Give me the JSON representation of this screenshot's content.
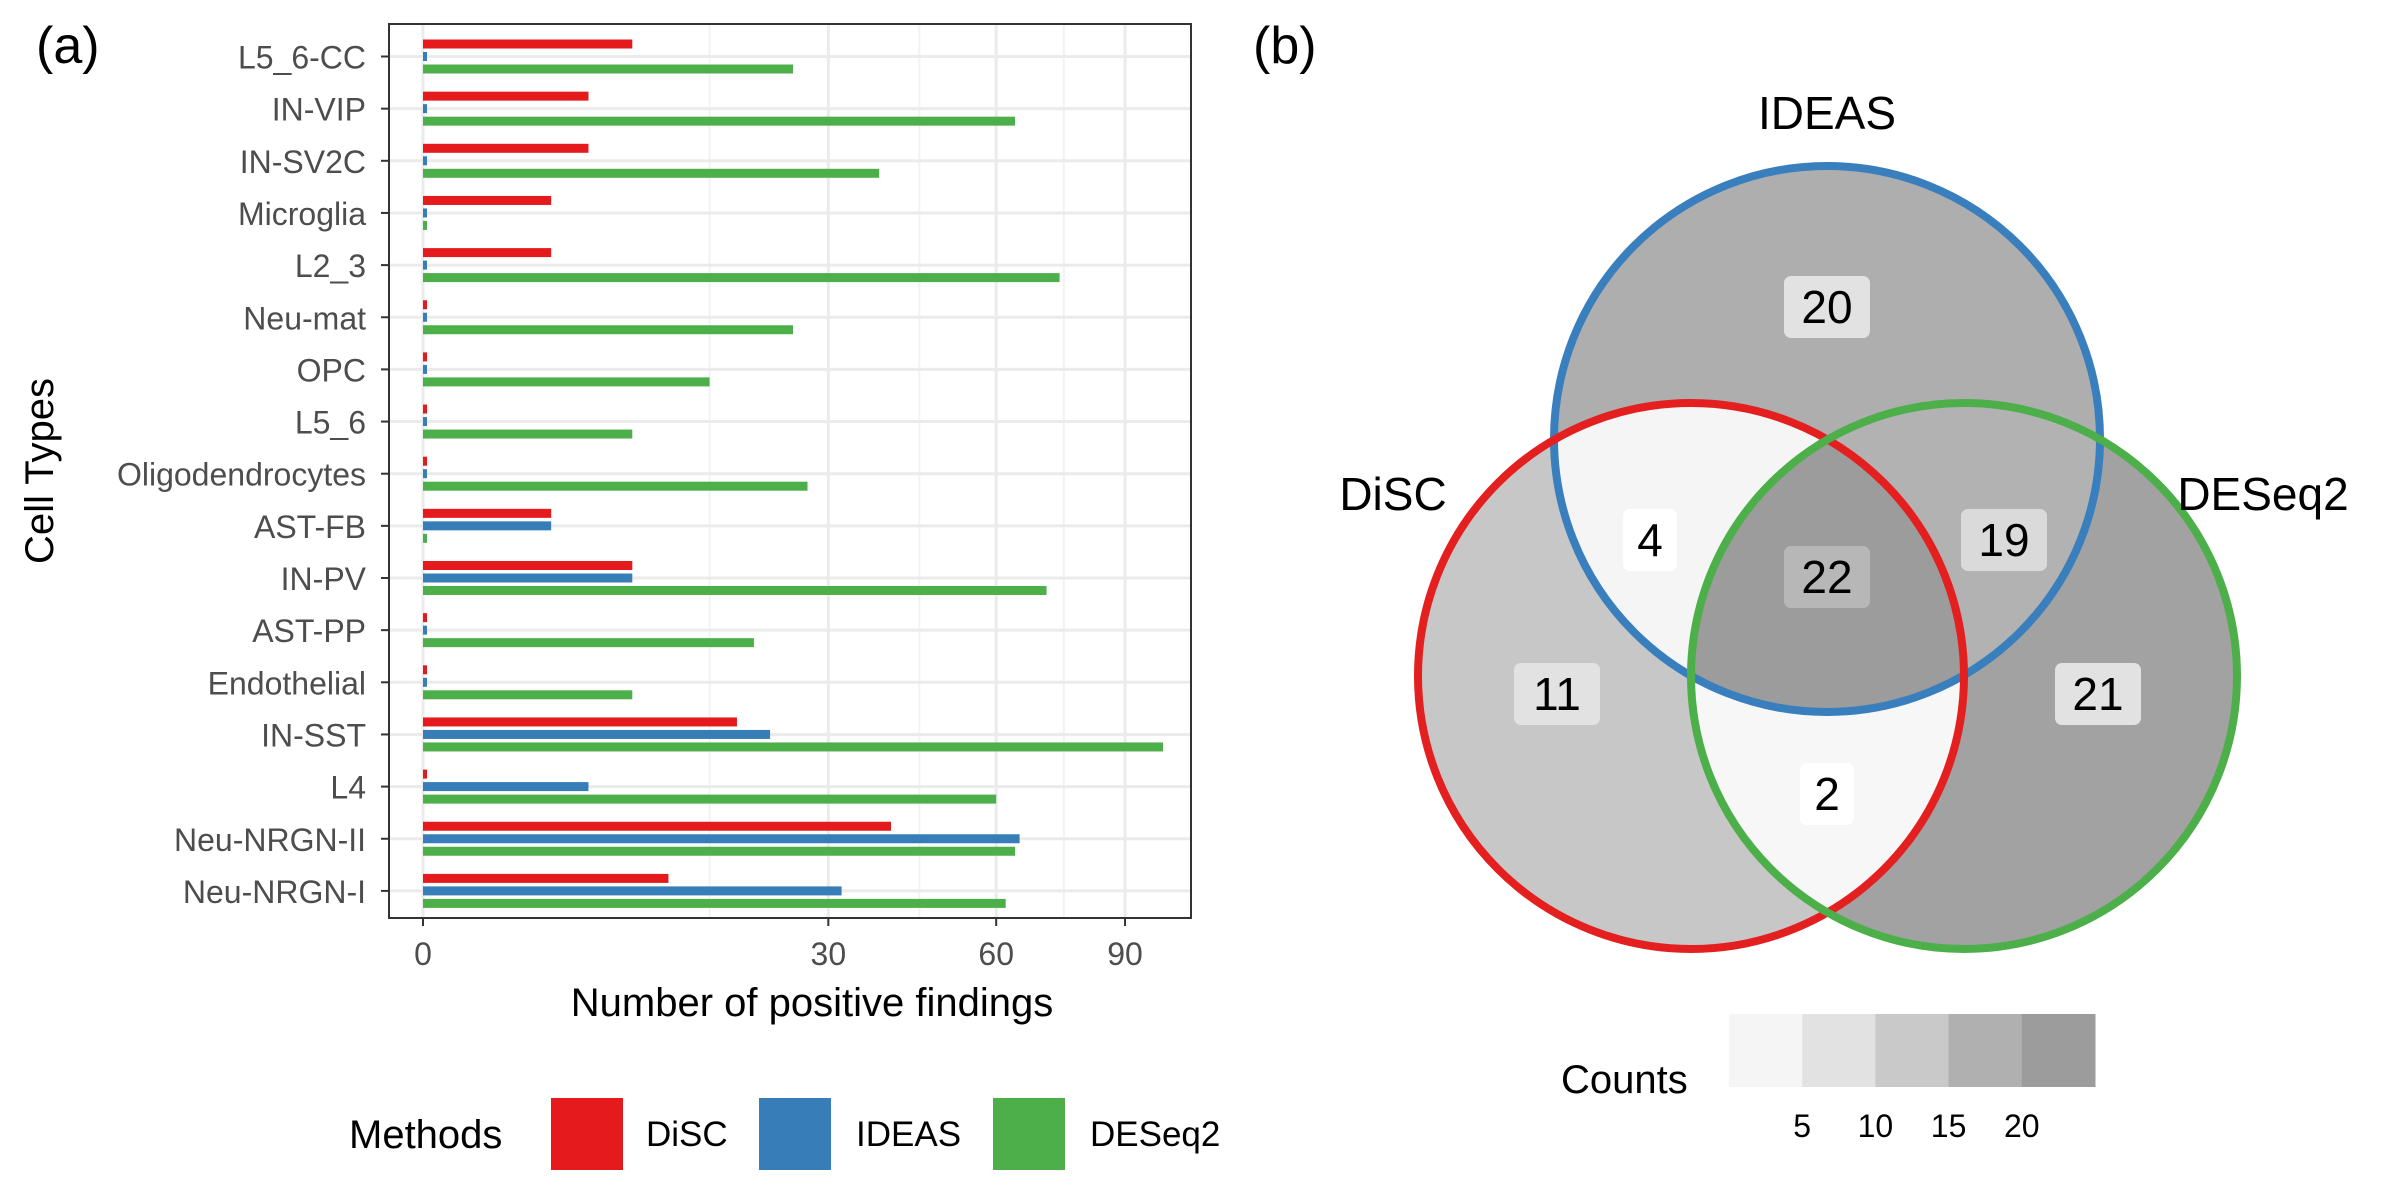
{
  "panels": {
    "a_label": "(a)",
    "b_label": "(b)"
  },
  "chart_data": [
    {
      "type": "bar",
      "orientation": "horizontal",
      "xlabel": "Number of positive findings",
      "ylabel": "Cell Types",
      "x_scale": "sqrt",
      "x_ticks": [
        0,
        30,
        60,
        90
      ],
      "xlim": [
        0,
        100
      ],
      "grid": true,
      "legend": {
        "title": "Methods",
        "position": "bottom",
        "entries": [
          {
            "name": "DiSC",
            "color": "#E41A1C"
          },
          {
            "name": "IDEAS",
            "color": "#377EB8"
          },
          {
            "name": "DESeq2",
            "color": "#4DAF4A"
          }
        ]
      },
      "categories": [
        "L5_6-CC",
        "IN-VIP",
        "IN-SV2C",
        "Microglia",
        "L2_3",
        "Neu-mat",
        "OPC",
        "L5_6",
        "Oligodendrocytes",
        "AST-FB",
        "IN-PV",
        "AST-PP",
        "Endothelial",
        "IN-SST",
        "L4",
        "Neu-NRGN-II",
        "Neu-NRGN-I"
      ],
      "series": [
        {
          "name": "DiSC",
          "color": "#E41A1C",
          "values": [
            8,
            5,
            5,
            3,
            3,
            0,
            0,
            0,
            0,
            3,
            8,
            0,
            0,
            18,
            0,
            40,
            11
          ]
        },
        {
          "name": "IDEAS",
          "color": "#377EB8",
          "values": [
            0,
            0,
            0,
            0,
            0,
            0,
            0,
            0,
            0,
            3,
            8,
            0,
            0,
            22,
            5,
            65,
            32
          ]
        },
        {
          "name": "DESeq2",
          "color": "#4DAF4A",
          "values": [
            25,
            64,
            38,
            0,
            74,
            25,
            15,
            8,
            27,
            0,
            71,
            20,
            8,
            100,
            60,
            64,
            62
          ]
        }
      ]
    },
    {
      "type": "venn",
      "sets": [
        {
          "name": "IDEAS",
          "color": "#3A7FBD"
        },
        {
          "name": "DiSC",
          "color": "#E3201F"
        },
        {
          "name": "DESeq2",
          "color": "#4DAF4A"
        }
      ],
      "regions": [
        {
          "sets": [
            "IDEAS"
          ],
          "count": 20,
          "label": "20"
        },
        {
          "sets": [
            "DiSC"
          ],
          "count": 11,
          "label": "11"
        },
        {
          "sets": [
            "DESeq2"
          ],
          "count": 21,
          "label": "21"
        },
        {
          "sets": [
            "DiSC",
            "IDEAS"
          ],
          "count": 4,
          "label": "4"
        },
        {
          "sets": [
            "IDEAS",
            "DESeq2"
          ],
          "count": 19,
          "label": "19"
        },
        {
          "sets": [
            "DiSC",
            "DESeq2"
          ],
          "count": 2,
          "label": "2"
        },
        {
          "sets": [
            "DiSC",
            "IDEAS",
            "DESeq2"
          ],
          "count": 22,
          "label": "22"
        }
      ],
      "color_legend": {
        "title": "Counts",
        "ticks": [
          "5",
          "10",
          "15",
          "20"
        ],
        "colors": [
          "#F5F5F5",
          "#E2E2E2",
          "#C9C9C9",
          "#B0B0B0",
          "#9C9C9C"
        ]
      }
    }
  ]
}
